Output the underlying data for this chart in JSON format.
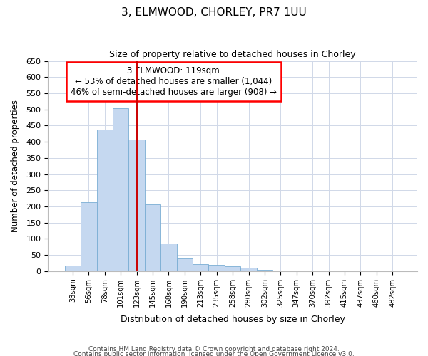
{
  "title1": "3, ELMWOOD, CHORLEY, PR7 1UU",
  "title2": "Size of property relative to detached houses in Chorley",
  "xlabel": "Distribution of detached houses by size in Chorley",
  "ylabel": "Number of detached properties",
  "annotation_line1": "3 ELMWOOD: 119sqm",
  "annotation_line2": "← 53% of detached houses are smaller (1,044)",
  "annotation_line3": "46% of semi-detached houses are larger (908) →",
  "bar_color": "#c5d8f0",
  "bar_edge_color": "#7aadd4",
  "vline_color": "#cc0000",
  "categories": [
    "33sqm",
    "56sqm",
    "78sqm",
    "101sqm",
    "123sqm",
    "145sqm",
    "168sqm",
    "190sqm",
    "213sqm",
    "235sqm",
    "258sqm",
    "280sqm",
    "302sqm",
    "325sqm",
    "347sqm",
    "370sqm",
    "392sqm",
    "415sqm",
    "437sqm",
    "460sqm",
    "482sqm"
  ],
  "values": [
    17,
    213,
    437,
    503,
    408,
    207,
    85,
    40,
    22,
    19,
    16,
    10,
    5,
    1,
    2,
    1,
    0,
    0,
    0,
    0,
    2
  ],
  "ylim": [
    0,
    650
  ],
  "yticks": [
    0,
    50,
    100,
    150,
    200,
    250,
    300,
    350,
    400,
    450,
    500,
    550,
    600,
    650
  ],
  "vline_x_index": 4.0,
  "footnote1": "Contains HM Land Registry data © Crown copyright and database right 2024.",
  "footnote2": "Contains public sector information licensed under the Open Government Licence v3.0.",
  "background_color": "#ffffff",
  "plot_bg_color": "#ffffff",
  "grid_color": "#d0d8e8"
}
